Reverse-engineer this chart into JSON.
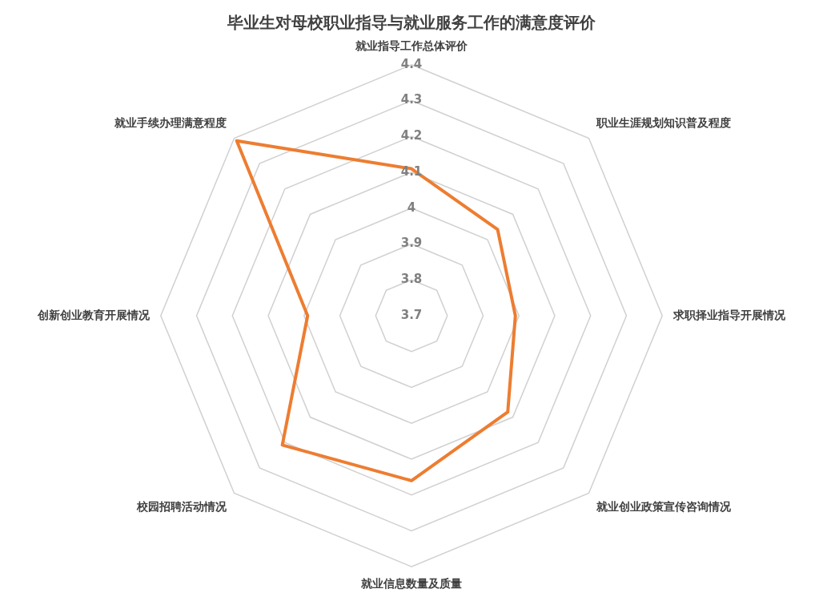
{
  "chart_data": {
    "type": "radar",
    "title": "毕业生对母校职业指导与就业服务工作的满意度评价",
    "categories": [
      "就业指导工作总体评价",
      "职业生涯规划知识普及程度",
      "求职择业指导开展情况",
      "就业创业政策宣传咨询情况",
      "就业信息数量及质量",
      "校园招聘活动情况",
      "创新创业教育开展情况",
      "就业手续办理满意程度"
    ],
    "series": [
      {
        "color": "#ed7d31",
        "values": [
          4.11,
          4.04,
          3.99,
          4.08,
          4.16,
          4.21,
          3.99,
          4.39
        ]
      }
    ],
    "ylim": [
      3.7,
      4.4
    ],
    "yticks": [
      3.7,
      3.8,
      3.9,
      4,
      4.1,
      4.2,
      4.3,
      4.4
    ],
    "grid": true,
    "legend": false,
    "marker": "none",
    "line_style": "solid"
  }
}
